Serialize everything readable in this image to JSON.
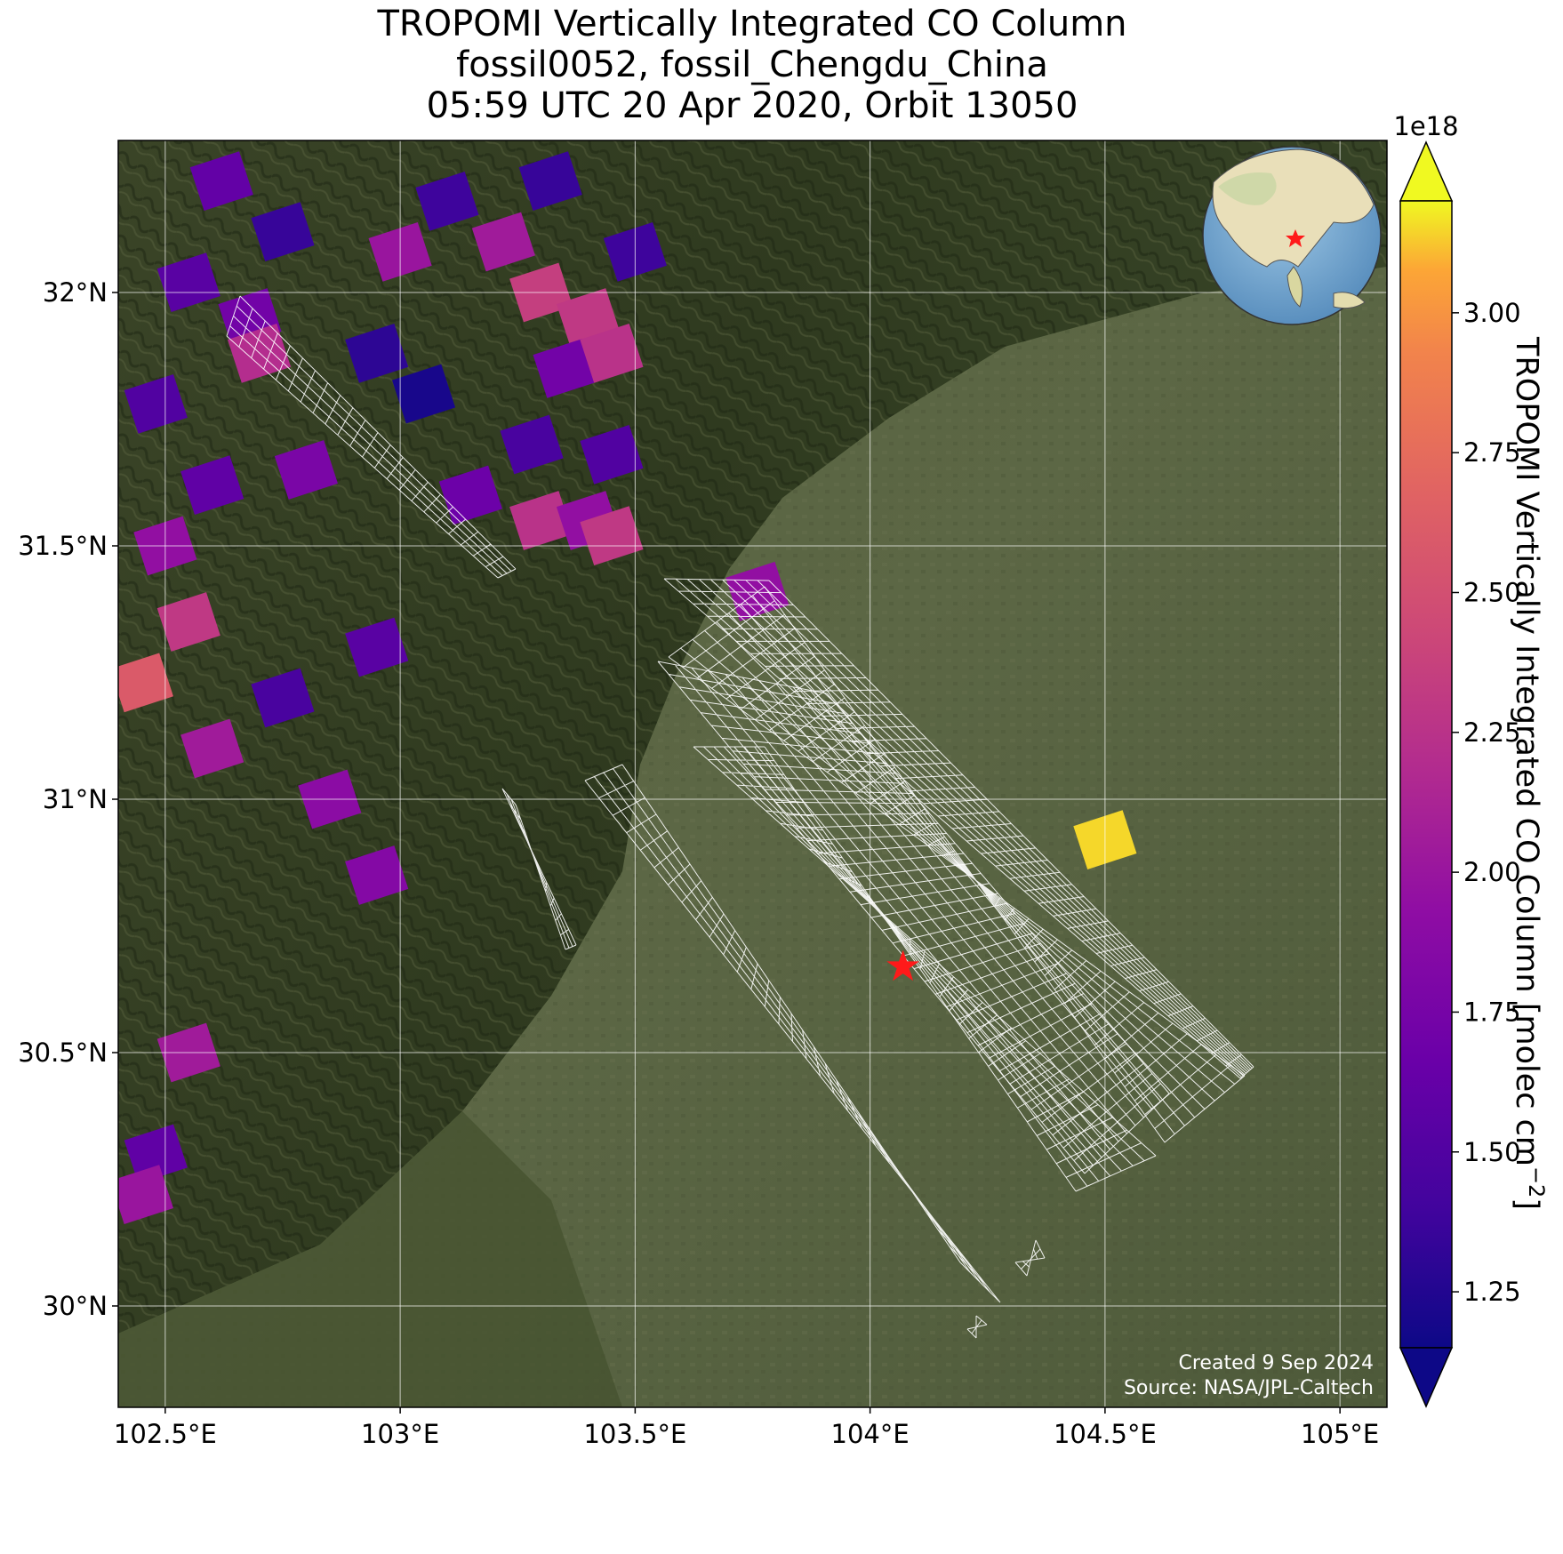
{
  "title": {
    "line1": "TROPOMI Vertically Integrated CO Column",
    "line2": "fossil0052, fossil_Chengdu_China",
    "line3": "05:59 UTC 20 Apr 2020, Orbit 13050"
  },
  "map": {
    "lon_range": [
      102.4,
      105.1
    ],
    "lat_range": [
      29.8,
      32.3
    ],
    "x_ticks": [
      {
        "value": 102.5,
        "label": "102.5°E"
      },
      {
        "value": 103.0,
        "label": "103°E"
      },
      {
        "value": 103.5,
        "label": "103.5°E"
      },
      {
        "value": 104.0,
        "label": "104°E"
      },
      {
        "value": 104.5,
        "label": "104.5°E"
      },
      {
        "value": 105.0,
        "label": "105°E"
      }
    ],
    "y_ticks": [
      {
        "value": 32.0,
        "label": "32°N"
      },
      {
        "value": 31.5,
        "label": "31.5°N"
      },
      {
        "value": 31.0,
        "label": "31°N"
      },
      {
        "value": 30.5,
        "label": "30.5°N"
      },
      {
        "value": 30.0,
        "label": "30°N"
      }
    ],
    "grid": true,
    "basemap": "satellite-imagery",
    "target": {
      "name": "fossil_Chengdu_China",
      "lon": 104.07,
      "lat": 30.67,
      "marker": "red-star",
      "color": "#ff1a1a"
    },
    "credit_line1": "Created 9 Sep 2024",
    "credit_line2": "Source: NASA/JPL-Caltech",
    "inset": {
      "type": "globe",
      "marker": "red-star",
      "location": "top-right"
    }
  },
  "colorbar": {
    "label_main": "TROPOMI Vertically Integrated CO Column [molec cm",
    "label_sup": "−2",
    "label_end": "]",
    "exponent": "1e18",
    "colormap": "plasma",
    "range": [
      1.15,
      3.2
    ],
    "ticks": [
      {
        "value": 1.25,
        "label": "1.25"
      },
      {
        "value": 1.5,
        "label": "1.50"
      },
      {
        "value": 1.75,
        "label": "1.75"
      },
      {
        "value": 2.0,
        "label": "2.00"
      },
      {
        "value": 2.25,
        "label": "2.25"
      },
      {
        "value": 2.5,
        "label": "2.50"
      },
      {
        "value": 2.75,
        "label": "2.75"
      },
      {
        "value": 3.0,
        "label": "3.00"
      }
    ],
    "extend": "both"
  },
  "chart_data": {
    "type": "heatmap",
    "units": "molec cm^-2 (x1e18)",
    "pixels": [
      {
        "lon": 102.62,
        "lat": 32.22,
        "value": 1.62
      },
      {
        "lon": 102.75,
        "lat": 32.12,
        "value": 1.35
      },
      {
        "lon": 102.55,
        "lat": 32.02,
        "value": 1.55
      },
      {
        "lon": 102.68,
        "lat": 31.95,
        "value": 1.72
      },
      {
        "lon": 102.7,
        "lat": 31.88,
        "value": 2.2
      },
      {
        "lon": 102.48,
        "lat": 31.78,
        "value": 1.5
      },
      {
        "lon": 102.6,
        "lat": 31.62,
        "value": 1.6
      },
      {
        "lon": 102.5,
        "lat": 31.5,
        "value": 1.95
      },
      {
        "lon": 102.55,
        "lat": 31.35,
        "value": 2.3
      },
      {
        "lon": 102.45,
        "lat": 31.23,
        "value": 2.6
      },
      {
        "lon": 102.6,
        "lat": 31.1,
        "value": 2.05
      },
      {
        "lon": 102.75,
        "lat": 31.2,
        "value": 1.45
      },
      {
        "lon": 102.95,
        "lat": 31.3,
        "value": 1.55
      },
      {
        "lon": 102.8,
        "lat": 31.65,
        "value": 1.78
      },
      {
        "lon": 102.95,
        "lat": 31.88,
        "value": 1.3
      },
      {
        "lon": 103.05,
        "lat": 31.8,
        "value": 1.2
      },
      {
        "lon": 103.15,
        "lat": 31.6,
        "value": 1.68
      },
      {
        "lon": 103.0,
        "lat": 32.08,
        "value": 2.0
      },
      {
        "lon": 103.1,
        "lat": 32.18,
        "value": 1.38
      },
      {
        "lon": 103.22,
        "lat": 32.1,
        "value": 2.05
      },
      {
        "lon": 103.3,
        "lat": 32.0,
        "value": 2.35
      },
      {
        "lon": 103.32,
        "lat": 32.22,
        "value": 1.35
      },
      {
        "lon": 103.4,
        "lat": 31.95,
        "value": 2.3
      },
      {
        "lon": 103.35,
        "lat": 31.85,
        "value": 1.72
      },
      {
        "lon": 103.45,
        "lat": 31.88,
        "value": 2.25
      },
      {
        "lon": 103.28,
        "lat": 31.7,
        "value": 1.45
      },
      {
        "lon": 103.45,
        "lat": 31.68,
        "value": 1.5
      },
      {
        "lon": 103.3,
        "lat": 31.55,
        "value": 2.25
      },
      {
        "lon": 103.4,
        "lat": 31.55,
        "value": 1.95
      },
      {
        "lon": 103.45,
        "lat": 31.52,
        "value": 2.3
      },
      {
        "lon": 103.5,
        "lat": 32.08,
        "value": 1.38
      },
      {
        "lon": 102.85,
        "lat": 31.0,
        "value": 1.9
      },
      {
        "lon": 102.95,
        "lat": 30.85,
        "value": 1.85
      },
      {
        "lon": 102.55,
        "lat": 30.5,
        "value": 2.05
      },
      {
        "lon": 102.48,
        "lat": 30.3,
        "value": 1.6
      },
      {
        "lon": 102.45,
        "lat": 30.22,
        "value": 2.0
      },
      {
        "lon": 103.76,
        "lat": 31.41,
        "value": 1.95
      },
      {
        "lon": 104.5,
        "lat": 30.92,
        "value": 3.15
      }
    ],
    "swaths_without_data": true
  }
}
